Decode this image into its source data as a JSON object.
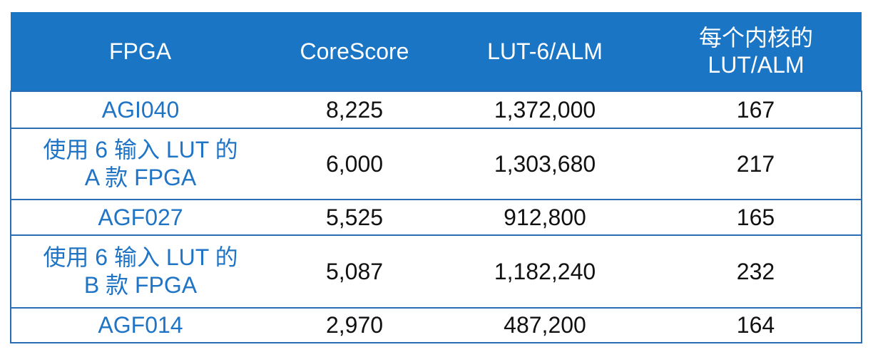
{
  "table": {
    "headers": [
      "FPGA",
      "CoreScore",
      "LUT-6/ALM",
      [
        "每个内核的",
        "LUT/ALM"
      ]
    ],
    "rows": [
      {
        "fpga": [
          "AGI040"
        ],
        "corescore": "8,225",
        "lut": "1,372,000",
        "per_core": "167"
      },
      {
        "fpga": [
          "使用 6 输入 LUT 的",
          "A 款 FPGA"
        ],
        "corescore": "6,000",
        "lut": "1,303,680",
        "per_core": "217"
      },
      {
        "fpga": [
          "AGF027"
        ],
        "corescore": "5,525",
        "lut": "912,800",
        "per_core": "165"
      },
      {
        "fpga": [
          "使用 6 输入 LUT 的",
          "B 款 FPGA"
        ],
        "corescore": "5,087",
        "lut": "1,182,240",
        "per_core": "232"
      },
      {
        "fpga": [
          "AGF014"
        ],
        "corescore": "2,970",
        "lut": "487,200",
        "per_core": "164"
      }
    ]
  },
  "colors": {
    "header_bg": "#1a75c4",
    "name_text": "#1f74c6",
    "border": "#2a6db5"
  }
}
